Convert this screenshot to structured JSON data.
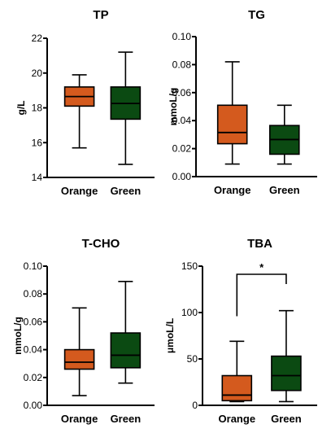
{
  "colors": {
    "orange": "#d45a1e",
    "green": "#0b4a12",
    "axis": "#000000"
  },
  "chart_data": [
    {
      "type": "box",
      "title": "TP",
      "ylabel": "g/L",
      "ylim": [
        14,
        22
      ],
      "yticks": [
        "14",
        "16",
        "18",
        "20",
        "22"
      ],
      "tick_values": [
        14,
        16,
        18,
        20,
        22
      ],
      "categories": [
        "Orange",
        "Green"
      ],
      "series": [
        {
          "min": 15.7,
          "q1": 18.1,
          "median": 18.65,
          "q3": 19.2,
          "max": 19.9,
          "color": "orange"
        },
        {
          "min": 14.75,
          "q1": 17.35,
          "median": 18.25,
          "q3": 19.2,
          "max": 21.2,
          "color": "green"
        }
      ],
      "significance": null
    },
    {
      "type": "box",
      "title": "TG",
      "ylabel": "mmoL/g",
      "ylim": [
        0,
        0.1
      ],
      "yticks": [
        "0.00",
        "0.02",
        "0.04",
        "0.06",
        "0.08",
        "0.10"
      ],
      "tick_values": [
        0,
        0.02,
        0.04,
        0.06,
        0.08,
        0.1
      ],
      "categories": [
        "Orange",
        "Green"
      ],
      "series": [
        {
          "min": 0.009,
          "q1": 0.0235,
          "median": 0.0315,
          "q3": 0.051,
          "max": 0.082,
          "color": "orange"
        },
        {
          "min": 0.009,
          "q1": 0.016,
          "median": 0.0265,
          "q3": 0.0365,
          "max": 0.051,
          "color": "green"
        }
      ],
      "significance": null
    },
    {
      "type": "box",
      "title": "T-CHO",
      "ylabel": "mmoL/g",
      "ylim": [
        0,
        0.1
      ],
      "yticks": [
        "0.00",
        "0.02",
        "0.04",
        "0.06",
        "0.08",
        "0.10"
      ],
      "tick_values": [
        0,
        0.02,
        0.04,
        0.06,
        0.08,
        0.1
      ],
      "categories": [
        "Orange",
        "Green"
      ],
      "series": [
        {
          "min": 0.007,
          "q1": 0.026,
          "median": 0.031,
          "q3": 0.04,
          "max": 0.07,
          "color": "orange"
        },
        {
          "min": 0.016,
          "q1": 0.027,
          "median": 0.036,
          "q3": 0.052,
          "max": 0.089,
          "color": "green"
        }
      ],
      "significance": null
    },
    {
      "type": "box",
      "title": "TBA",
      "ylabel": "μmoL/L",
      "ylim": [
        0,
        150
      ],
      "yticks": [
        "0",
        "50",
        "100",
        "150"
      ],
      "tick_values": [
        0,
        50,
        100,
        150
      ],
      "categories": [
        "Orange",
        "Green"
      ],
      "series": [
        {
          "min": 4,
          "q1": 5,
          "median": 11,
          "q3": 32,
          "max": 69,
          "color": "orange"
        },
        {
          "min": 4,
          "q1": 16,
          "median": 32,
          "q3": 53,
          "max": 102,
          "color": "green"
        }
      ],
      "significance": {
        "label": "*",
        "y": 150,
        "drop": 96
      }
    }
  ]
}
